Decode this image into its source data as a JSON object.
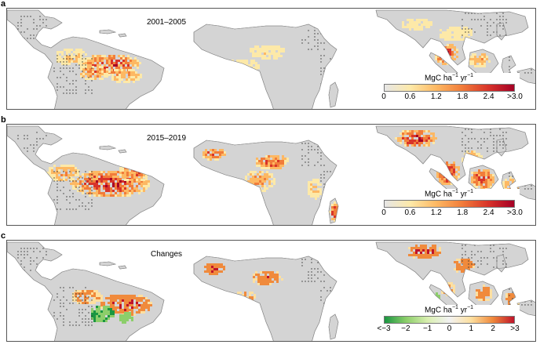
{
  "panels": [
    {
      "letter": "a",
      "title": "2001–2005",
      "colorbar": {
        "unit_prefix": "MgC ha",
        "unit_sup1": "−1",
        "unit_mid": " yr",
        "unit_sup2": "−1",
        "ticks": [
          "0",
          "0.6",
          "1.2",
          "1.8",
          "2.4",
          ">3.0"
        ],
        "scale": "sequential",
        "colors": [
          "#e6e6e6",
          "#fde9a8",
          "#fdb863",
          "#f17c3a",
          "#d8342a",
          "#a50026"
        ]
      }
    },
    {
      "letter": "b",
      "title": "2015–2019",
      "colorbar": {
        "unit_prefix": "MgC ha",
        "unit_sup1": "−1",
        "unit_mid": " yr",
        "unit_sup2": "−1",
        "ticks": [
          "0",
          "0.6",
          "1.2",
          "1.8",
          "2.4",
          ">3.0"
        ],
        "scale": "sequential",
        "colors": [
          "#e6e6e6",
          "#fde9a8",
          "#fdb863",
          "#f17c3a",
          "#d8342a",
          "#a50026"
        ]
      }
    },
    {
      "letter": "c",
      "title": "Changes",
      "colorbar": {
        "unit_prefix": "MgC ha",
        "unit_sup1": "−1",
        "unit_mid": " yr",
        "unit_sup2": "−1",
        "ticks": [
          "<−3",
          "−2",
          "−1",
          "0",
          "1",
          "2",
          ">3"
        ],
        "scale": "diverging",
        "colors": [
          "#1a9641",
          "#8cce6a",
          "#d9efb0",
          "#f2f2f2",
          "#fde0a0",
          "#f08a3c",
          "#c0142a"
        ]
      }
    }
  ],
  "style": {
    "land": "#d4d4d4",
    "coast": "#8a8a8a",
    "stipple": "#333333"
  }
}
